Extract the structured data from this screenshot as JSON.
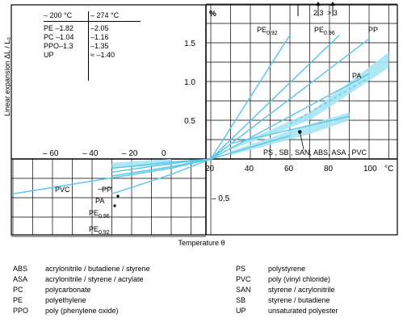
{
  "chart_data": {
    "type": "line",
    "xlabel": "Temperature θ",
    "ylabel": "Linear expansion ΔL / L₀",
    "x_unit": "°C",
    "y_unit": "%",
    "xlim": [
      -80,
      110
    ],
    "ylim": [
      -1.0,
      2.0
    ],
    "x_ticks": [
      "– 60",
      "– 40",
      "– 20",
      "0",
      "20",
      "40",
      "60",
      "80",
      "100"
    ],
    "y_ticks": [
      "1.5",
      "1.0",
      "0.5",
      "– 0.5"
    ],
    "series": [
      {
        "name": "PVC",
        "x": [
          -80,
          0,
          20,
          60
        ],
        "y": [
          -0.45,
          -0.12,
          0.0,
          0.3
        ]
      },
      {
        "name": "PP",
        "x": [
          -30,
          0,
          20,
          100
        ],
        "y": [
          -0.12,
          -0.04,
          0.0,
          1.55
        ]
      },
      {
        "name": "PA",
        "x": [
          -30,
          0,
          20,
          100
        ],
        "y": [
          -0.17,
          -0.06,
          0.0,
          1.1
        ]
      },
      {
        "name": "PE0.96",
        "x": [
          -30,
          0,
          20,
          85
        ],
        "y": [
          -0.22,
          -0.1,
          0.0,
          1.6
        ]
      },
      {
        "name": "PE0.92",
        "x": [
          -30,
          0,
          20,
          60
        ],
        "y": [
          -0.45,
          -0.2,
          0.0,
          1.6
        ]
      },
      {
        "name": "PS, SB, SAN, ABS, ASA, PVC",
        "x": [
          30,
          90
        ],
        "y": [
          0.2,
          0.55
        ]
      }
    ],
    "annotations": [
      "2.3",
      "> 3"
    ]
  },
  "inset_table": {
    "headers": [
      "– 200 °C",
      "– 274 °C"
    ],
    "rows": [
      {
        "left": "PE  –1.82",
        "right": "–2.05"
      },
      {
        "left": "PC  –1.04",
        "right": "–1.16"
      },
      {
        "left": "PPO–1.3",
        "right": "–1.35"
      },
      {
        "left": "UP",
        "right": "≈ –1.40"
      }
    ]
  },
  "labels": {
    "pe092_top": "PE",
    "pe092_top_sub": "0.92",
    "pe096_top": "PE",
    "pe096_top_sub": "0.96",
    "pp_top": "PP",
    "pa_top": "PA",
    "group": "PS , SB , SAN, ABS, ASA , PVC",
    "pvc_low": "PVC",
    "pp_low": "PP",
    "pa_low": "PA",
    "pe096_low": "PE",
    "pe096_low_sub": "0.96",
    "pe092_low": "PE",
    "pe092_low_sub": "0.92",
    "y_unit": "%",
    "x_unit": "°C"
  },
  "legend": [
    {
      "abbr": "ABS",
      "text": "acrylonitrile / butadiene / styrene"
    },
    {
      "abbr": "ASA",
      "text": "acrylonitrile / styrene / acrylate"
    },
    {
      "abbr": "PC",
      "text": "polycarbonate"
    },
    {
      "abbr": "PE",
      "text": "polyethylene"
    },
    {
      "abbr": "PPO",
      "text": "poly (phenylene oxide)"
    },
    {
      "abbr": "PS",
      "text": "polystyrene"
    },
    {
      "abbr": "PVC",
      "text": "poly (vinyl chloride)"
    },
    {
      "abbr": "SAN",
      "text": "styrene / acrylonitrile"
    },
    {
      "abbr": "SB",
      "text": "styrene / butadiene"
    },
    {
      "abbr": "UP",
      "text": "unsaturated polyester"
    }
  ],
  "colors": {
    "curve": "#5bc8e8",
    "band": "#a6e4f3",
    "grid": "#000000"
  }
}
